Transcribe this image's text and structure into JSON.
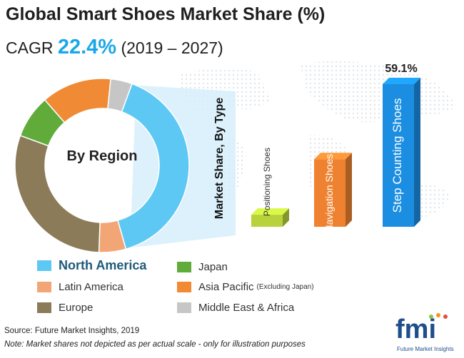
{
  "header": {
    "title": "Global Smart Shoes Market Share (%)",
    "cagr_label": "CAGR",
    "cagr_value": "22.4%",
    "cagr_period": "(2019 – 2027)"
  },
  "chart_data": [
    {
      "type": "donut",
      "center_label": "By Region",
      "categories": [
        "North America",
        "Latin America",
        "Europe",
        "Japan",
        "Asia Pacific (Excluding Japan)",
        "Middle East & Africa"
      ],
      "values": [
        40,
        5,
        30,
        8,
        13,
        4
      ],
      "colors": [
        "#5ec8f5",
        "#f2a675",
        "#8c7b58",
        "#60ab3a",
        "#f08a35",
        "#c6c6c6"
      ],
      "legend_position": "bottom"
    },
    {
      "type": "bar",
      "ylabel": "Market Share, By Type",
      "categories": [
        "Positioning Shoes",
        "Navigation Shoes",
        "Step Counting Shoes"
      ],
      "values": [
        5,
        28,
        59.1
      ],
      "data_labels": [
        "",
        "",
        "59.1%"
      ],
      "colors": [
        "#b8d23c",
        "#ee8230",
        "#1b8ee2"
      ]
    }
  ],
  "legend": {
    "items": [
      {
        "label": "North America",
        "color": "#5ec8f5",
        "note": ""
      },
      {
        "label": "Japan",
        "color": "#60ab3a",
        "note": ""
      },
      {
        "label": "Latin America",
        "color": "#f2a675",
        "note": ""
      },
      {
        "label": "Asia Pacific",
        "color": "#f08a35",
        "note": "(Excluding Japan)"
      },
      {
        "label": "Europe",
        "color": "#8c7b58",
        "note": ""
      },
      {
        "label": "Middle East & Africa",
        "color": "#c6c6c6",
        "note": ""
      }
    ]
  },
  "footer": {
    "source": "Source: Future Market Insights, 2019",
    "note": "Note: Market shares not depicted as per actual scale - only for illustration purposes"
  },
  "logo": {
    "letters": "fmi",
    "caption": "Future Market Insights"
  }
}
